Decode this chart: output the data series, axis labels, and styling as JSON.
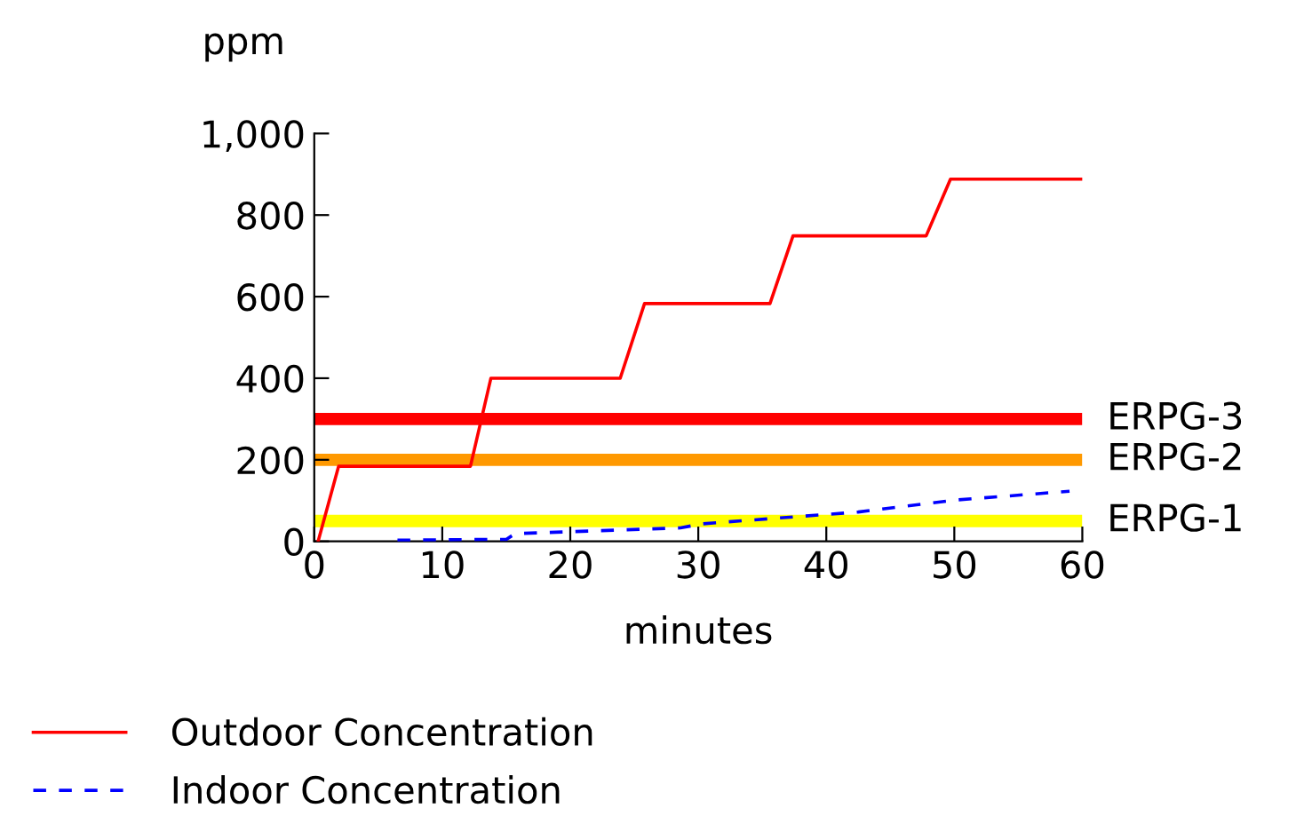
{
  "chart_data": {
    "type": "line",
    "ylabel": "ppm",
    "xlabel": "minutes",
    "xlim": [
      0,
      60
    ],
    "ylim": [
      0,
      1000
    ],
    "xticks": [
      0,
      10,
      20,
      30,
      40,
      50,
      60
    ],
    "yticks": [
      0,
      200,
      400,
      600,
      800,
      {
        "value": 1000,
        "label": "1,000"
      }
    ],
    "grid": false,
    "legend": "bottom left",
    "series": [
      {
        "name": "Outdoor Concentration",
        "color": "#ff0000",
        "line_style": "solid",
        "x": [
          0.3,
          1.9,
          12.2,
          13.8,
          23.9,
          25.8,
          35.6,
          37.4,
          47.8,
          49.7,
          59.9
        ],
        "values": [
          0,
          184,
          184,
          400,
          400,
          583,
          583,
          749,
          749,
          888,
          888
        ]
      },
      {
        "name": "Indoor Concentration",
        "color": "#0000ff",
        "line_style": "dashed",
        "x": [
          6.5,
          15,
          15.7,
          28.6,
          30.3,
          42.5,
          50,
          59
        ],
        "values": [
          3,
          5,
          19,
          33,
          43,
          72,
          101,
          123
        ]
      }
    ],
    "ref_lines": [
      {
        "axis": "y",
        "value": 300,
        "label": "ERPG-3",
        "color": "#ff0000"
      },
      {
        "axis": "y",
        "value": 200,
        "label": "ERPG-2",
        "color": "#ff9900"
      },
      {
        "axis": "y",
        "value": 50,
        "label": "ERPG-1",
        "color": "#ffff00"
      }
    ]
  }
}
